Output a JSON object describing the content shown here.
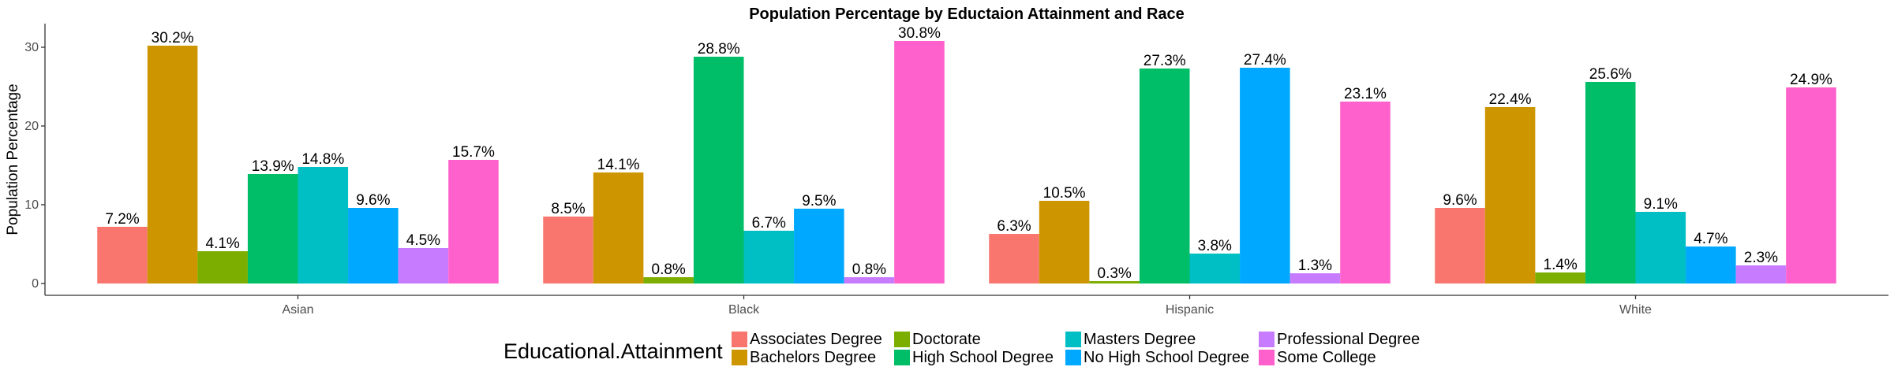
{
  "chart_data": {
    "type": "bar",
    "title": "Population Percentage by Eductaion Attainment and Race",
    "xlabel": "",
    "ylabel": "Population Percentage",
    "ylim": [
      -1.5,
      33
    ],
    "yticks": [
      0,
      10,
      20,
      30
    ],
    "categories": [
      "Asian",
      "Black",
      "Hispanic",
      "White"
    ],
    "legend_title": "Educational.Attainment",
    "legend_position": "bottom",
    "grid": false,
    "series": [
      {
        "name": "Associates Degree",
        "color": "#F8766D",
        "values": [
          7.2,
          8.5,
          6.3,
          9.6
        ],
        "labels": [
          "7.2%",
          "8.5%",
          "6.3%",
          "9.6%"
        ]
      },
      {
        "name": "Bachelors Degree",
        "color": "#CD9600",
        "values": [
          30.2,
          14.1,
          10.5,
          22.4
        ],
        "labels": [
          "30.2%",
          "14.1%",
          "10.5%",
          "22.4%"
        ]
      },
      {
        "name": "Doctorate",
        "color": "#7CAE00",
        "values": [
          4.1,
          0.8,
          0.3,
          1.4
        ],
        "labels": [
          "4.1%",
          "0.8%",
          "0.3%",
          "1.4%"
        ]
      },
      {
        "name": "High School Degree",
        "color": "#00BE67",
        "values": [
          13.9,
          28.8,
          27.3,
          25.6
        ],
        "labels": [
          "13.9%",
          "28.8%",
          "27.3%",
          "25.6%"
        ]
      },
      {
        "name": "Masters Degree",
        "color": "#00BFC4",
        "values": [
          14.8,
          6.7,
          3.8,
          9.1
        ],
        "labels": [
          "14.8%",
          "6.7%",
          "3.8%",
          "9.1%"
        ]
      },
      {
        "name": "No High School Degree",
        "color": "#00A9FF",
        "values": [
          9.6,
          9.5,
          27.4,
          4.7
        ],
        "labels": [
          "9.6%",
          "9.5%",
          "27.4%",
          "4.7%"
        ]
      },
      {
        "name": "Professional Degree",
        "color": "#C77CFF",
        "values": [
          4.5,
          0.8,
          1.3,
          2.3
        ],
        "labels": [
          "4.5%",
          "0.8%",
          "1.3%",
          "2.3%"
        ]
      },
      {
        "name": "Some College",
        "color": "#FF61CC",
        "values": [
          15.7,
          30.8,
          23.1,
          24.9
        ],
        "labels": [
          "15.7%",
          "30.8%",
          "23.1%",
          "24.9%"
        ]
      }
    ]
  }
}
